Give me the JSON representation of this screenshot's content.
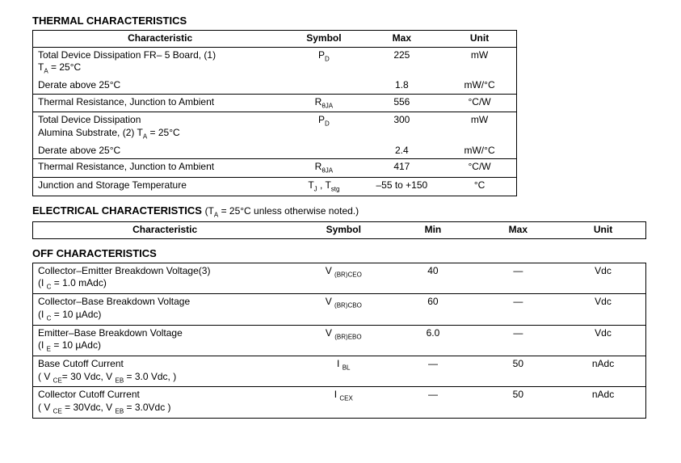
{
  "thermal": {
    "title": "THERMAL CHARACTERISTICS",
    "headers": {
      "char": "Characteristic",
      "sym": "Symbol",
      "max": "Max",
      "unit": "Unit"
    },
    "rows": [
      {
        "lines": [
          "Total Device Dissipation FR– 5 Board, (1)",
          "T<sub>A</sub> = 25°C"
        ],
        "sym": "P<sub>D</sub>",
        "max": "225",
        "unit": "mW",
        "top": false
      },
      {
        "lines": [
          "Derate above 25°C"
        ],
        "sym": "",
        "max": "1.8",
        "unit": "mW/°C",
        "top": false
      },
      {
        "lines": [
          "Thermal Resistance, Junction to Ambient"
        ],
        "sym": "R<sub>θJA</sub>",
        "max": "556",
        "unit": "°C/W",
        "top": true
      },
      {
        "lines": [
          "Total Device Dissipation",
          "Alumina Substrate, (2) T<sub>A</sub> = 25°C"
        ],
        "sym": "P<sub>D</sub>",
        "max": "300",
        "unit": "mW",
        "top": true
      },
      {
        "lines": [
          "Derate above 25°C"
        ],
        "sym": "",
        "max": "2.4",
        "unit": "mW/°C",
        "top": false
      },
      {
        "lines": [
          "Thermal Resistance, Junction to Ambient"
        ],
        "sym": "R<sub>θJA</sub>",
        "max": "417",
        "unit": "°C/W",
        "top": true
      },
      {
        "lines": [
          "Junction and Storage Temperature"
        ],
        "sym": "T<sub>J</sub> , T<sub>stg</sub>",
        "max": "–55 to +150",
        "unit": "°C",
        "top": true
      }
    ]
  },
  "electrical": {
    "title": "ELECTRICAL CHARACTERISTICS",
    "note": "(T<sub>A</sub> = 25°C unless otherwise noted.)",
    "headers": {
      "char": "Characteristic",
      "sym": "Symbol",
      "min": "Min",
      "max": "Max",
      "unit": "Unit"
    }
  },
  "off": {
    "title": "OFF CHARACTERISTICS",
    "rows": [
      {
        "lines": [
          "Collector–Emitter Breakdown Voltage(3)",
          "(I <sub>C</sub> = 1.0 mAdc)"
        ],
        "sym": "V <sub>(BR)CEO</sub>",
        "min": "40",
        "max": "—",
        "unit": "Vdc",
        "top": false
      },
      {
        "lines": [
          "Collector–Base Breakdown Voltage",
          "(I <sub>C</sub> = 10 µAdc)"
        ],
        "sym": "V <sub>(BR)CBO</sub>",
        "min": "60",
        "max": "—",
        "unit": "Vdc",
        "top": true
      },
      {
        "lines": [
          "Emitter–Base Breakdown Voltage",
          "(I <sub>E</sub> = 10 µAdc)"
        ],
        "sym": "V <sub>(BR)EBO</sub>",
        "min": "6.0",
        "max": "—",
        "unit": "Vdc",
        "top": true
      },
      {
        "lines": [
          "Base Cutoff Current",
          "( V <sub>CE</sub>= 30 Vdc, V <sub>EB</sub> = 3.0 Vdc, )"
        ],
        "sym": "I <sub>BL</sub>",
        "min": "—",
        "max": "50",
        "unit": "nAdc",
        "top": true
      },
      {
        "lines": [
          "Collector Cutoff Current",
          "( V <sub>CE</sub> = 30Vdc, V <sub>EB</sub> = 3.0Vdc )"
        ],
        "sym": "I <sub>CEX</sub>",
        "min": "—",
        "max": "50",
        "unit": "nAdc",
        "top": true
      }
    ]
  }
}
